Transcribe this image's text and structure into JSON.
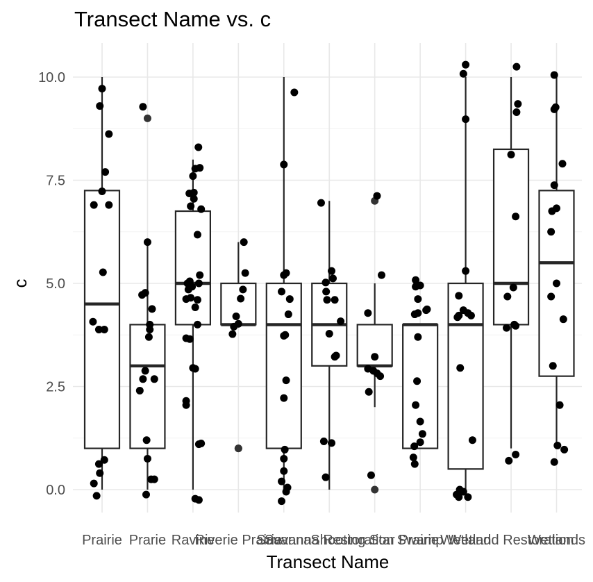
{
  "chart_data": {
    "type": "boxplot",
    "title": "Transect Name vs. c",
    "xlabel": "Transect Name",
    "ylabel": "c",
    "ylim": [
      -0.55,
      10.7
    ],
    "yticks": [
      "0.0",
      "2.5",
      "5.0",
      "7.5",
      "10.0"
    ],
    "grid": true,
    "categories": [
      "Prairie",
      "Prarie",
      "Ravine",
      "Riverie Prairie",
      "Savanna",
      "Savanna Restoration",
      "Shooting Star Prairie",
      "Swamp",
      "Wetland",
      "Wetland Restoration",
      "Wetlands"
    ],
    "boxes": [
      {
        "q1": 1.0,
        "median": 4.5,
        "q3": 7.25,
        "lower": 0.0,
        "upper": 10.0
      },
      {
        "q1": 1.0,
        "median": 3.0,
        "q3": 4.0,
        "lower": 0.0,
        "upper": 6.0
      },
      {
        "q1": 4.0,
        "median": 5.0,
        "q3": 6.75,
        "lower": 0.0,
        "upper": 8.0
      },
      {
        "q1": 4.0,
        "median": 4.0,
        "q3": 5.0,
        "lower": 4.0,
        "upper": 6.0
      },
      {
        "q1": 1.0,
        "median": 4.0,
        "q3": 5.0,
        "lower": 0.0,
        "upper": 10.0
      },
      {
        "q1": 3.0,
        "median": 4.0,
        "q3": 5.0,
        "lower": 0.0,
        "upper": 7.0
      },
      {
        "q1": 3.0,
        "median": 3.0,
        "q3": 4.0,
        "lower": 2.0,
        "upper": 5.0
      },
      {
        "q1": 1.0,
        "median": 4.0,
        "q3": 4.0,
        "lower": 1.0,
        "upper": 4.0
      },
      {
        "q1": 0.5,
        "median": 4.0,
        "q3": 5.0,
        "lower": 0.0,
        "upper": 10.0
      },
      {
        "q1": 4.0,
        "median": 5.0,
        "q3": 8.25,
        "lower": 1.0,
        "upper": 10.0
      },
      {
        "q1": 2.75,
        "median": 5.5,
        "q3": 7.25,
        "lower": 1.0,
        "upper": 10.0
      }
    ],
    "outliers": [
      [],
      [
        9.0
      ],
      [],
      [
        1.0,
        1.0
      ],
      [],
      [],
      [
        7.0,
        0.0
      ],
      [],
      [],
      [],
      []
    ],
    "points": [
      [
        {
          "x": -0.12,
          "y": -0.15
        },
        {
          "x": -0.18,
          "y": 0.15
        },
        {
          "x": -0.05,
          "y": 0.4
        },
        {
          "x": -0.07,
          "y": 0.62
        },
        {
          "x": 0.05,
          "y": 0.72
        },
        {
          "x": -0.2,
          "y": 4.07
        },
        {
          "x": -0.07,
          "y": 3.88
        },
        {
          "x": 0.05,
          "y": 3.88
        },
        {
          "x": 0.02,
          "y": 5.27
        },
        {
          "x": -0.18,
          "y": 6.9
        },
        {
          "x": 0.15,
          "y": 6.9
        },
        {
          "x": 0.0,
          "y": 7.23
        },
        {
          "x": 0.07,
          "y": 7.7
        },
        {
          "x": 0.15,
          "y": 8.62
        },
        {
          "x": -0.05,
          "y": 9.3
        },
        {
          "x": 0.0,
          "y": 9.72
        }
      ],
      [
        {
          "x": -0.03,
          "y": -0.12
        },
        {
          "x": 0.08,
          "y": 0.25
        },
        {
          "x": 0.15,
          "y": 0.25
        },
        {
          "x": 0.0,
          "y": 0.75
        },
        {
          "x": -0.02,
          "y": 1.2
        },
        {
          "x": -0.17,
          "y": 2.4
        },
        {
          "x": -0.1,
          "y": 2.68
        },
        {
          "x": 0.15,
          "y": 2.68
        },
        {
          "x": -0.05,
          "y": 2.88
        },
        {
          "x": 0.03,
          "y": 3.7
        },
        {
          "x": 0.05,
          "y": 3.88
        },
        {
          "x": 0.05,
          "y": 4.0
        },
        {
          "x": 0.1,
          "y": 4.38
        },
        {
          "x": -0.12,
          "y": 4.72
        },
        {
          "x": -0.05,
          "y": 4.77
        },
        {
          "x": 0.0,
          "y": 6.0
        },
        {
          "x": -0.1,
          "y": 9.28
        }
      ],
      [
        {
          "x": 0.05,
          "y": -0.22
        },
        {
          "x": 0.13,
          "y": -0.25
        },
        {
          "x": -0.15,
          "y": 2.05
        },
        {
          "x": -0.15,
          "y": 2.15
        },
        {
          "x": 0.13,
          "y": 1.1
        },
        {
          "x": 0.18,
          "y": 1.12
        },
        {
          "x": 0.0,
          "y": 2.95
        },
        {
          "x": 0.05,
          "y": 2.93
        },
        {
          "x": -0.15,
          "y": 3.67
        },
        {
          "x": -0.07,
          "y": 3.65
        },
        {
          "x": 0.1,
          "y": 4.0
        },
        {
          "x": -0.15,
          "y": 4.62
        },
        {
          "x": -0.05,
          "y": 4.65
        },
        {
          "x": 0.05,
          "y": 4.42
        },
        {
          "x": 0.1,
          "y": 4.6
        },
        {
          "x": -0.1,
          "y": 4.85
        },
        {
          "x": -0.02,
          "y": 4.92
        },
        {
          "x": -0.07,
          "y": 5.05
        },
        {
          "x": 0.13,
          "y": 5.0
        },
        {
          "x": -0.12,
          "y": 5.0
        },
        {
          "x": 0.15,
          "y": 5.2
        },
        {
          "x": 0.1,
          "y": 6.18
        },
        {
          "x": -0.05,
          "y": 6.87
        },
        {
          "x": 0.18,
          "y": 6.8
        },
        {
          "x": 0.02,
          "y": 7.05
        },
        {
          "x": -0.08,
          "y": 7.18
        },
        {
          "x": 0.02,
          "y": 7.2
        },
        {
          "x": 0.0,
          "y": 7.6
        },
        {
          "x": 0.05,
          "y": 7.78
        },
        {
          "x": 0.15,
          "y": 7.8
        },
        {
          "x": 0.12,
          "y": 8.3
        }
      ],
      [
        {
          "x": -0.13,
          "y": 3.77
        },
        {
          "x": -0.1,
          "y": 3.95
        },
        {
          "x": 0.0,
          "y": 4.02
        },
        {
          "x": -0.05,
          "y": 4.2
        },
        {
          "x": 0.05,
          "y": 4.63
        },
        {
          "x": 0.1,
          "y": 4.85
        },
        {
          "x": 0.15,
          "y": 5.25
        },
        {
          "x": 0.12,
          "y": 6.0
        }
      ],
      [
        {
          "x": -0.05,
          "y": -0.28
        },
        {
          "x": 0.05,
          "y": -0.05
        },
        {
          "x": -0.05,
          "y": 0.2
        },
        {
          "x": 0.08,
          "y": 0.05
        },
        {
          "x": 0.0,
          "y": 0.45
        },
        {
          "x": 0.0,
          "y": 0.75
        },
        {
          "x": 0.02,
          "y": 0.97
        },
        {
          "x": 0.0,
          "y": 2.22
        },
        {
          "x": 0.05,
          "y": 2.65
        },
        {
          "x": 0.0,
          "y": 3.73
        },
        {
          "x": 0.03,
          "y": 3.75
        },
        {
          "x": -0.05,
          "y": 4.8
        },
        {
          "x": 0.13,
          "y": 4.62
        },
        {
          "x": 0.1,
          "y": 4.25
        },
        {
          "x": 0.0,
          "y": 5.2
        },
        {
          "x": 0.05,
          "y": 5.25
        },
        {
          "x": 0.0,
          "y": 7.88
        },
        {
          "x": 0.23,
          "y": 9.63
        }
      ],
      [
        {
          "x": -0.08,
          "y": 0.3
        },
        {
          "x": -0.12,
          "y": 1.17
        },
        {
          "x": 0.05,
          "y": 1.13
        },
        {
          "x": 0.0,
          "y": 3.78
        },
        {
          "x": 0.12,
          "y": 3.22
        },
        {
          "x": 0.15,
          "y": 3.25
        },
        {
          "x": 0.25,
          "y": 4.08
        },
        {
          "x": 0.12,
          "y": 4.6
        },
        {
          "x": -0.05,
          "y": 4.6
        },
        {
          "x": -0.07,
          "y": 4.8
        },
        {
          "x": -0.08,
          "y": 5.02
        },
        {
          "x": 0.08,
          "y": 5.12
        },
        {
          "x": 0.05,
          "y": 5.3
        },
        {
          "x": -0.18,
          "y": 6.95
        }
      ],
      [
        {
          "x": -0.08,
          "y": 0.35
        },
        {
          "x": -0.13,
          "y": 2.37
        },
        {
          "x": -0.15,
          "y": 2.93
        },
        {
          "x": -0.03,
          "y": 2.88
        },
        {
          "x": 0.0,
          "y": 3.22
        },
        {
          "x": 0.05,
          "y": 2.82
        },
        {
          "x": 0.12,
          "y": 2.75
        },
        {
          "x": -0.15,
          "y": 4.28
        },
        {
          "x": 0.15,
          "y": 5.2
        },
        {
          "x": 0.05,
          "y": 7.12
        }
      ],
      [
        {
          "x": -0.12,
          "y": 0.62
        },
        {
          "x": -0.15,
          "y": 0.78
        },
        {
          "x": -0.13,
          "y": 1.05
        },
        {
          "x": 0.0,
          "y": 1.15
        },
        {
          "x": 0.05,
          "y": 1.35
        },
        {
          "x": 0.0,
          "y": 1.65
        },
        {
          "x": -0.1,
          "y": 2.05
        },
        {
          "x": -0.07,
          "y": 2.63
        },
        {
          "x": -0.05,
          "y": 3.7
        },
        {
          "x": -0.12,
          "y": 4.25
        },
        {
          "x": -0.05,
          "y": 4.28
        },
        {
          "x": 0.13,
          "y": 4.35
        },
        {
          "x": 0.15,
          "y": 4.37
        },
        {
          "x": -0.05,
          "y": 4.62
        },
        {
          "x": 0.0,
          "y": 4.95
        },
        {
          "x": -0.1,
          "y": 4.92
        },
        {
          "x": -0.1,
          "y": 5.08
        }
      ],
      [
        {
          "x": -0.2,
          "y": -0.12
        },
        {
          "x": -0.15,
          "y": -0.18
        },
        {
          "x": -0.05,
          "y": -0.05
        },
        {
          "x": 0.05,
          "y": -0.18
        },
        {
          "x": -0.13,
          "y": 0.0
        },
        {
          "x": 0.15,
          "y": 1.2
        },
        {
          "x": -0.12,
          "y": 2.95
        },
        {
          "x": -0.18,
          "y": 4.18
        },
        {
          "x": -0.15,
          "y": 4.22
        },
        {
          "x": -0.05,
          "y": 4.35
        },
        {
          "x": 0.05,
          "y": 4.28
        },
        {
          "x": 0.12,
          "y": 4.22
        },
        {
          "x": -0.15,
          "y": 4.7
        },
        {
          "x": 0.0,
          "y": 5.3
        },
        {
          "x": 0.0,
          "y": 8.98
        },
        {
          "x": -0.05,
          "y": 10.08
        },
        {
          "x": 0.0,
          "y": 10.3
        }
      ],
      [
        {
          "x": -0.05,
          "y": 0.7
        },
        {
          "x": 0.1,
          "y": 0.85
        },
        {
          "x": -0.1,
          "y": 3.92
        },
        {
          "x": 0.1,
          "y": 3.97
        },
        {
          "x": 0.07,
          "y": 4.0
        },
        {
          "x": -0.08,
          "y": 4.68
        },
        {
          "x": 0.05,
          "y": 4.9
        },
        {
          "x": 0.1,
          "y": 6.62
        },
        {
          "x": 0.0,
          "y": 8.12
        },
        {
          "x": 0.12,
          "y": 9.15
        },
        {
          "x": 0.15,
          "y": 9.35
        },
        {
          "x": 0.12,
          "y": 10.25
        }
      ],
      [
        {
          "x": -0.05,
          "y": 0.67
        },
        {
          "x": 0.17,
          "y": 0.97
        },
        {
          "x": 0.02,
          "y": 1.07
        },
        {
          "x": 0.07,
          "y": 2.05
        },
        {
          "x": -0.08,
          "y": 3.0
        },
        {
          "x": 0.15,
          "y": 4.13
        },
        {
          "x": -0.12,
          "y": 4.68
        },
        {
          "x": 0.0,
          "y": 5.0
        },
        {
          "x": -0.12,
          "y": 6.25
        },
        {
          "x": -0.1,
          "y": 6.75
        },
        {
          "x": 0.0,
          "y": 6.82
        },
        {
          "x": -0.05,
          "y": 7.38
        },
        {
          "x": 0.13,
          "y": 7.9
        },
        {
          "x": -0.05,
          "y": 9.22
        },
        {
          "x": -0.02,
          "y": 9.27
        },
        {
          "x": -0.05,
          "y": 10.05
        }
      ]
    ]
  }
}
